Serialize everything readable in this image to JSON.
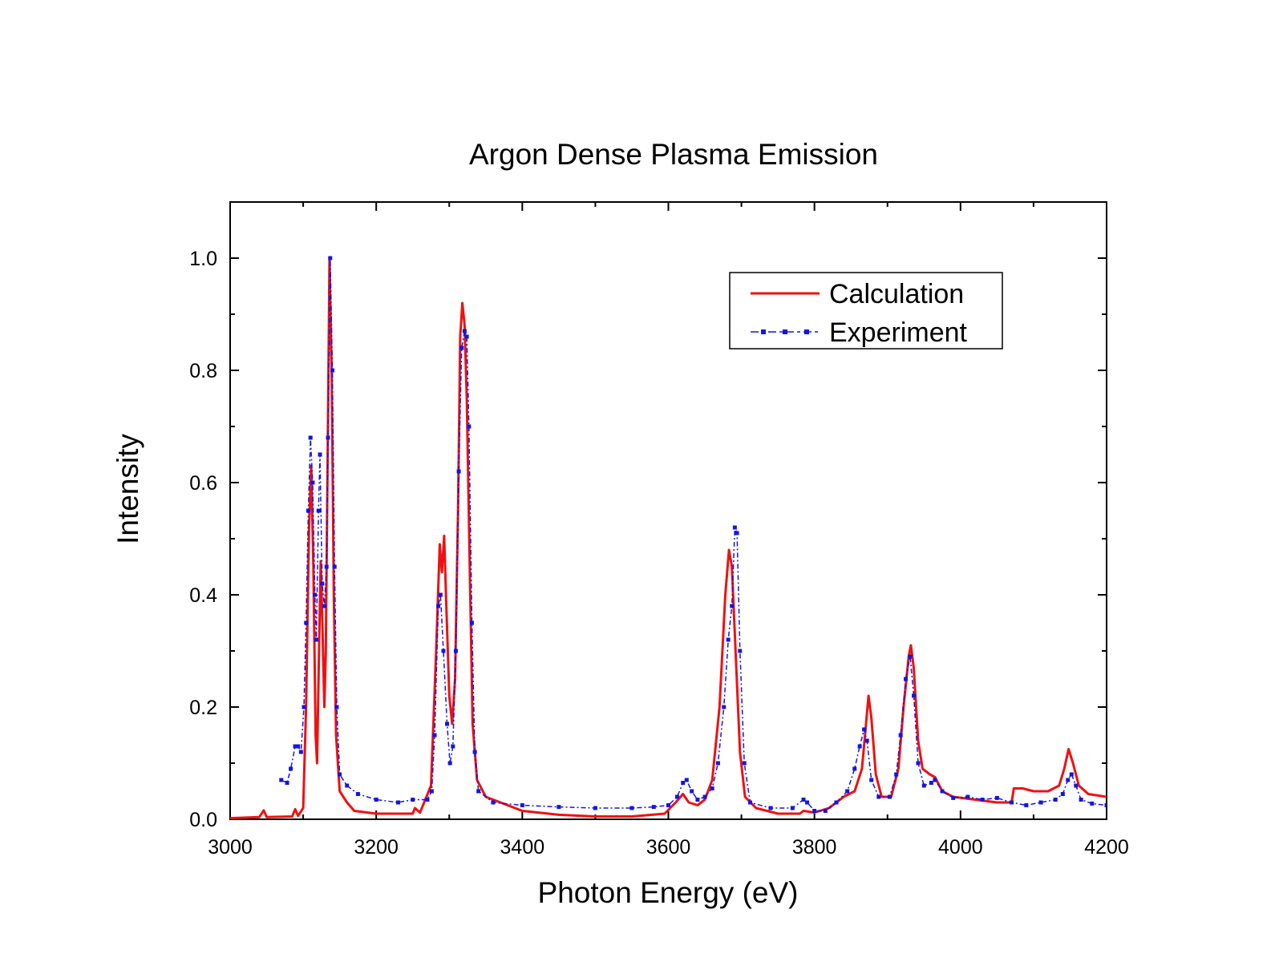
{
  "chart_data": {
    "type": "line",
    "title": "Argon Dense Plasma Emission",
    "xlabel": "Photon Energy (eV)",
    "ylabel": "Intensity",
    "xlim": [
      3000,
      4200
    ],
    "ylim": [
      0,
      1.1
    ],
    "x_ticks": [
      3000,
      3200,
      3400,
      3600,
      3800,
      4000,
      4200
    ],
    "x_tick_labels": [
      "3000",
      "3200",
      "3400",
      "3600",
      "3800",
      "4000",
      "4200"
    ],
    "y_ticks": [
      0,
      0.2,
      0.4,
      0.6,
      0.8,
      1.0
    ],
    "y_tick_labels": [
      "0.0",
      "0.2",
      "0.4",
      "0.6",
      "0.8",
      "1.0"
    ],
    "grid": false,
    "legend_position": "top-right",
    "series": [
      {
        "name": "Calculation",
        "color": "#ee1111",
        "style": "solid",
        "points": [
          [
            3000,
            0.002
          ],
          [
            3040,
            0.004
          ],
          [
            3046,
            0.016
          ],
          [
            3050,
            0.004
          ],
          [
            3085,
            0.005
          ],
          [
            3089,
            0.018
          ],
          [
            3093,
            0.006
          ],
          [
            3100,
            0.02
          ],
          [
            3104,
            0.2
          ],
          [
            3108,
            0.52
          ],
          [
            3111,
            0.63
          ],
          [
            3114,
            0.45
          ],
          [
            3117,
            0.15
          ],
          [
            3119,
            0.1
          ],
          [
            3122,
            0.32
          ],
          [
            3124,
            0.46
          ],
          [
            3126,
            0.36
          ],
          [
            3129,
            0.2
          ],
          [
            3131,
            0.3
          ],
          [
            3134,
            0.72
          ],
          [
            3136,
            1.0
          ],
          [
            3139,
            0.8
          ],
          [
            3142,
            0.4
          ],
          [
            3145,
            0.15
          ],
          [
            3150,
            0.05
          ],
          [
            3160,
            0.03
          ],
          [
            3170,
            0.015
          ],
          [
            3200,
            0.01
          ],
          [
            3250,
            0.01
          ],
          [
            3253,
            0.02
          ],
          [
            3260,
            0.012
          ],
          [
            3275,
            0.06
          ],
          [
            3282,
            0.3
          ],
          [
            3287,
            0.49
          ],
          [
            3290,
            0.44
          ],
          [
            3293,
            0.505
          ],
          [
            3296,
            0.38
          ],
          [
            3300,
            0.22
          ],
          [
            3304,
            0.17
          ],
          [
            3308,
            0.25
          ],
          [
            3312,
            0.55
          ],
          [
            3315,
            0.86
          ],
          [
            3318,
            0.92
          ],
          [
            3321,
            0.88
          ],
          [
            3324,
            0.75
          ],
          [
            3328,
            0.45
          ],
          [
            3332,
            0.17
          ],
          [
            3338,
            0.07
          ],
          [
            3350,
            0.04
          ],
          [
            3400,
            0.015
          ],
          [
            3450,
            0.008
          ],
          [
            3500,
            0.005
          ],
          [
            3550,
            0.005
          ],
          [
            3595,
            0.01
          ],
          [
            3610,
            0.03
          ],
          [
            3620,
            0.045
          ],
          [
            3628,
            0.03
          ],
          [
            3640,
            0.025
          ],
          [
            3650,
            0.035
          ],
          [
            3660,
            0.07
          ],
          [
            3670,
            0.2
          ],
          [
            3678,
            0.4
          ],
          [
            3683,
            0.48
          ],
          [
            3687,
            0.45
          ],
          [
            3692,
            0.3
          ],
          [
            3698,
            0.12
          ],
          [
            3705,
            0.04
          ],
          [
            3720,
            0.02
          ],
          [
            3750,
            0.01
          ],
          [
            3780,
            0.01
          ],
          [
            3785,
            0.015
          ],
          [
            3800,
            0.012
          ],
          [
            3820,
            0.02
          ],
          [
            3840,
            0.04
          ],
          [
            3855,
            0.05
          ],
          [
            3865,
            0.09
          ],
          [
            3870,
            0.16
          ],
          [
            3874,
            0.22
          ],
          [
            3878,
            0.18
          ],
          [
            3884,
            0.08
          ],
          [
            3892,
            0.04
          ],
          [
            3905,
            0.04
          ],
          [
            3915,
            0.09
          ],
          [
            3922,
            0.2
          ],
          [
            3929,
            0.29
          ],
          [
            3932,
            0.31
          ],
          [
            3936,
            0.27
          ],
          [
            3942,
            0.14
          ],
          [
            3948,
            0.09
          ],
          [
            3958,
            0.08
          ],
          [
            3965,
            0.075
          ],
          [
            3975,
            0.05
          ],
          [
            3990,
            0.04
          ],
          [
            4020,
            0.035
          ],
          [
            4050,
            0.03
          ],
          [
            4070,
            0.03
          ],
          [
            4073,
            0.055
          ],
          [
            4085,
            0.055
          ],
          [
            4100,
            0.05
          ],
          [
            4120,
            0.05
          ],
          [
            4135,
            0.06
          ],
          [
            4142,
            0.09
          ],
          [
            4148,
            0.125
          ],
          [
            4154,
            0.1
          ],
          [
            4162,
            0.06
          ],
          [
            4175,
            0.045
          ],
          [
            4200,
            0.04
          ]
        ]
      },
      {
        "name": "Experiment",
        "color": "#1515e0",
        "style": "dash-dot-dot",
        "points": [
          [
            3070,
            0.07
          ],
          [
            3078,
            0.065
          ],
          [
            3083,
            0.09
          ],
          [
            3089,
            0.13
          ],
          [
            3093,
            0.13
          ],
          [
            3097,
            0.12
          ],
          [
            3101,
            0.2
          ],
          [
            3104,
            0.35
          ],
          [
            3107,
            0.55
          ],
          [
            3110,
            0.68
          ],
          [
            3113,
            0.6
          ],
          [
            3116,
            0.4
          ],
          [
            3118,
            0.32
          ],
          [
            3121,
            0.55
          ],
          [
            3123,
            0.65
          ],
          [
            3126,
            0.42
          ],
          [
            3129,
            0.38
          ],
          [
            3132,
            0.45
          ],
          [
            3134,
            0.68
          ],
          [
            3137,
            1.0
          ],
          [
            3140,
            0.8
          ],
          [
            3143,
            0.45
          ],
          [
            3146,
            0.2
          ],
          [
            3150,
            0.08
          ],
          [
            3160,
            0.06
          ],
          [
            3175,
            0.045
          ],
          [
            3200,
            0.035
          ],
          [
            3230,
            0.03
          ],
          [
            3250,
            0.035
          ],
          [
            3270,
            0.035
          ],
          [
            3276,
            0.05
          ],
          [
            3280,
            0.15
          ],
          [
            3285,
            0.38
          ],
          [
            3288,
            0.4
          ],
          [
            3292,
            0.3
          ],
          [
            3297,
            0.17
          ],
          [
            3301,
            0.1
          ],
          [
            3305,
            0.13
          ],
          [
            3309,
            0.3
          ],
          [
            3313,
            0.62
          ],
          [
            3317,
            0.84
          ],
          [
            3321,
            0.87
          ],
          [
            3324,
            0.86
          ],
          [
            3327,
            0.7
          ],
          [
            3331,
            0.35
          ],
          [
            3335,
            0.12
          ],
          [
            3340,
            0.05
          ],
          [
            3360,
            0.03
          ],
          [
            3400,
            0.025
          ],
          [
            3450,
            0.022
          ],
          [
            3500,
            0.02
          ],
          [
            3550,
            0.02
          ],
          [
            3580,
            0.022
          ],
          [
            3600,
            0.025
          ],
          [
            3612,
            0.04
          ],
          [
            3620,
            0.065
          ],
          [
            3625,
            0.07
          ],
          [
            3632,
            0.05
          ],
          [
            3640,
            0.035
          ],
          [
            3650,
            0.04
          ],
          [
            3660,
            0.055
          ],
          [
            3668,
            0.1
          ],
          [
            3676,
            0.2
          ],
          [
            3682,
            0.32
          ],
          [
            3687,
            0.38
          ],
          [
            3691,
            0.52
          ],
          [
            3694,
            0.51
          ],
          [
            3698,
            0.3
          ],
          [
            3704,
            0.1
          ],
          [
            3712,
            0.03
          ],
          [
            3740,
            0.02
          ],
          [
            3770,
            0.02
          ],
          [
            3785,
            0.035
          ],
          [
            3790,
            0.03
          ],
          [
            3800,
            0.015
          ],
          [
            3815,
            0.015
          ],
          [
            3830,
            0.03
          ],
          [
            3845,
            0.05
          ],
          [
            3855,
            0.09
          ],
          [
            3862,
            0.13
          ],
          [
            3868,
            0.16
          ],
          [
            3872,
            0.14
          ],
          [
            3878,
            0.07
          ],
          [
            3888,
            0.04
          ],
          [
            3903,
            0.04
          ],
          [
            3912,
            0.08
          ],
          [
            3918,
            0.15
          ],
          [
            3925,
            0.25
          ],
          [
            3931,
            0.29
          ],
          [
            3936,
            0.22
          ],
          [
            3942,
            0.1
          ],
          [
            3950,
            0.06
          ],
          [
            3960,
            0.065
          ],
          [
            3965,
            0.07
          ],
          [
            3975,
            0.05
          ],
          [
            3990,
            0.038
          ],
          [
            4010,
            0.04
          ],
          [
            4030,
            0.035
          ],
          [
            4050,
            0.038
          ],
          [
            4070,
            0.03
          ],
          [
            4090,
            0.025
          ],
          [
            4110,
            0.03
          ],
          [
            4130,
            0.035
          ],
          [
            4140,
            0.045
          ],
          [
            4147,
            0.07
          ],
          [
            4152,
            0.08
          ],
          [
            4158,
            0.06
          ],
          [
            4165,
            0.035
          ],
          [
            4180,
            0.028
          ],
          [
            4200,
            0.025
          ]
        ]
      }
    ]
  }
}
